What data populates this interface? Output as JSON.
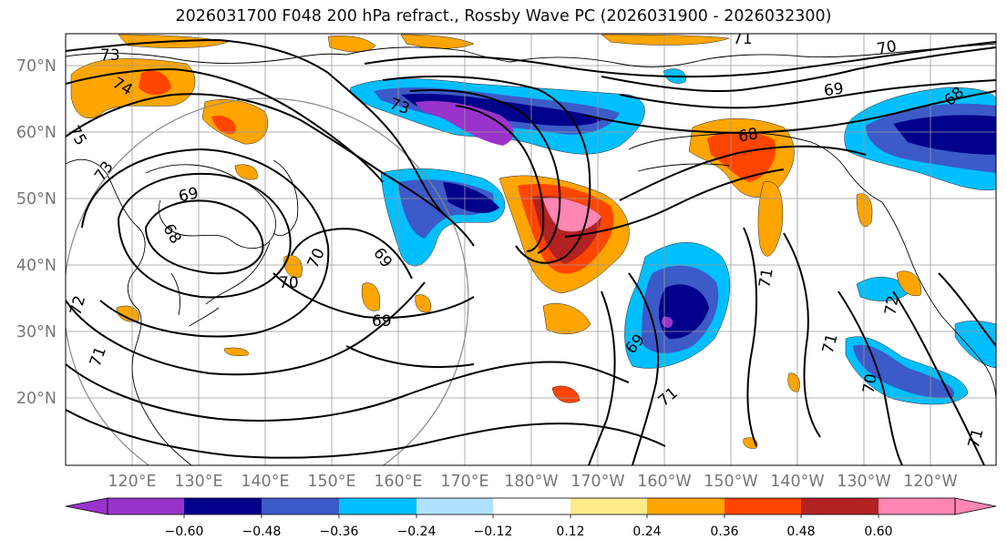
{
  "title": "2026031700 F048 200 hPa refract., Rossby Wave PC (2026031900 - 2026032300)",
  "lat_labels": [
    "70°N",
    "60°N",
    "50°N",
    "40°N",
    "30°N",
    "20°N"
  ],
  "lon_labels": [
    "120°E",
    "130°E",
    "140°E",
    "150°E",
    "160°E",
    "170°E",
    "180°W",
    "170°W",
    "160°W",
    "150°W",
    "140°W",
    "130°W",
    "120°W"
  ],
  "contour_labels": [
    "73",
    "74",
    "75",
    "73",
    "69",
    "68",
    "69",
    "70",
    "70",
    "69",
    "73",
    "71",
    "70",
    "69",
    "68",
    "68",
    "69",
    "71",
    "71",
    "72",
    "70",
    "71",
    "72",
    "71",
    "71"
  ],
  "colorbar": {
    "tick_labels": [
      "−0.60",
      "−0.48",
      "−0.36",
      "−0.24",
      "−0.12",
      "0.12",
      "0.24",
      "0.36",
      "0.48",
      "0.60"
    ],
    "colors": [
      "#9933cc",
      "#00008b",
      "#3c5ac8",
      "#00bfff",
      "#b0e2ff",
      "#ffffff",
      "#ffeb8a",
      "#ffa500",
      "#ff4500",
      "#b22222",
      "#ff85b2"
    ]
  }
}
